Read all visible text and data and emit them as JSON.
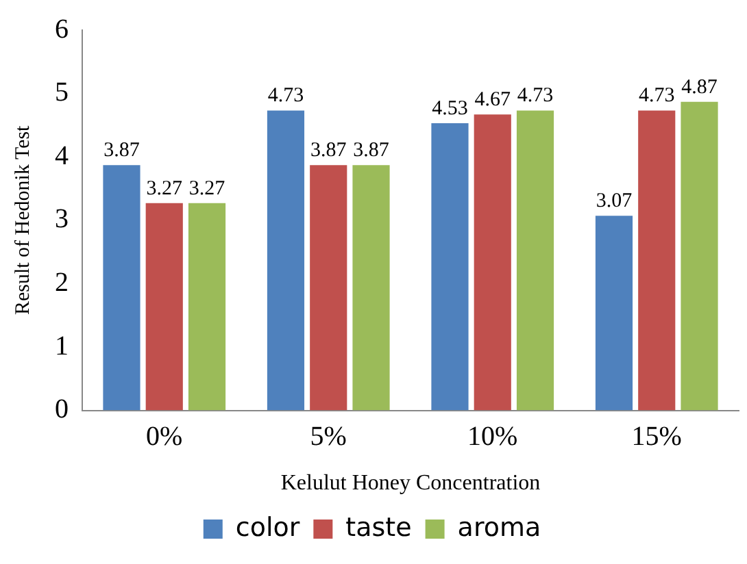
{
  "chart_data": {
    "type": "bar",
    "xlabel": "Kelulut Honey Concentration",
    "ylabel": "Result of Hedonik Test",
    "categories": [
      "0%",
      "5%",
      "10%",
      "15%"
    ],
    "series": [
      {
        "name": "color",
        "color": "#4f81bd",
        "values": [
          3.87,
          4.73,
          4.53,
          3.07
        ]
      },
      {
        "name": "taste",
        "color": "#c0504d",
        "values": [
          3.27,
          3.87,
          4.67,
          4.73
        ]
      },
      {
        "name": "aroma",
        "color": "#9bbb59",
        "values": [
          3.27,
          3.87,
          4.73,
          4.87
        ]
      }
    ],
    "ylim": [
      0,
      6
    ],
    "yticks": [
      0,
      1,
      2,
      3,
      4,
      5,
      6
    ],
    "grid": false,
    "legend": "bottom",
    "data_labels": true
  }
}
